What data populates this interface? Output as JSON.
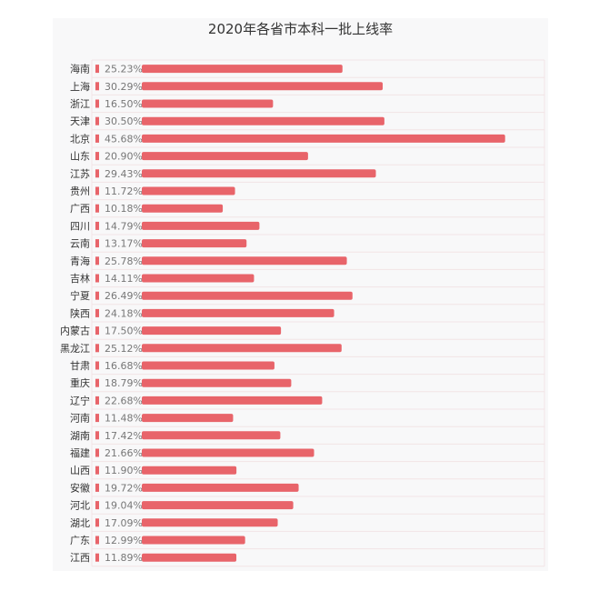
{
  "chart_data": {
    "type": "bar",
    "orientation": "horizontal",
    "title": "2020年各省市本科一批上线率",
    "xlabel": "",
    "ylabel": "",
    "unit": "%",
    "xlim": [
      0,
      50
    ],
    "grid": false,
    "legend": "none",
    "categories": [
      "海南",
      "上海",
      "浙江",
      "天津",
      "北京",
      "山东",
      "江苏",
      "贵州",
      "广西",
      "四川",
      "云南",
      "青海",
      "吉林",
      "宁夏",
      "陕西",
      "内蒙古",
      "黑龙江",
      "甘肃",
      "重庆",
      "辽宁",
      "河南",
      "湖南",
      "福建",
      "山西",
      "安徽",
      "河北",
      "湖北",
      "广东",
      "江西"
    ],
    "values": [
      25.23,
      30.29,
      16.5,
      30.5,
      45.68,
      20.9,
      29.43,
      11.72,
      10.18,
      14.79,
      13.17,
      25.78,
      14.11,
      26.49,
      24.18,
      17.5,
      25.12,
      16.68,
      18.79,
      22.68,
      11.48,
      17.42,
      21.66,
      11.9,
      19.72,
      19.04,
      17.09,
      12.99,
      11.89
    ],
    "labels": [
      "25.23%",
      "30.29%",
      "16.50%",
      "30.50%",
      "45.68%",
      "20.90%",
      "29.43%",
      "11.72%",
      "10.18%",
      "14.79%",
      "13.17%",
      "25.78%",
      "14.11%",
      "26.49%",
      "24.18%",
      "17.50%",
      "25.12%",
      "16.68%",
      "18.79%",
      "22.68%",
      "11.48%",
      "17.42%",
      "21.66%",
      "11.90%",
      "19.72%",
      "19.04%",
      "17.09%",
      "12.99%",
      "11.89%"
    ],
    "colors": {
      "bar": "#e8646a",
      "panel": "#f8f8f9",
      "rowline": "#f2e4e6",
      "label": "#777777",
      "category": "#333333",
      "title": "#333333"
    }
  }
}
